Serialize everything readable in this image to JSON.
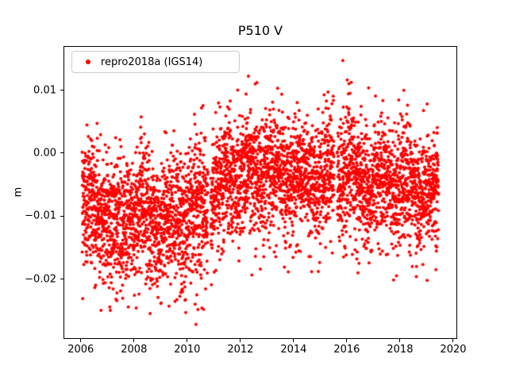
{
  "chart_data": {
    "type": "scatter",
    "title": "P510 V",
    "xlabel": "",
    "ylabel": "m",
    "xlim": [
      2005.35,
      2020.15
    ],
    "ylim": [
      -0.0295,
      0.017
    ],
    "xticks": [
      2006,
      2008,
      2010,
      2012,
      2014,
      2016,
      2018,
      2020
    ],
    "xtick_labels": [
      "2006",
      "2008",
      "2010",
      "2012",
      "2014",
      "2016",
      "2018",
      "2020"
    ],
    "yticks": [
      0.01,
      0.0,
      -0.01,
      -0.02
    ],
    "ytick_labels": [
      "0.01",
      "0.00",
      "−0.01",
      "−0.02"
    ],
    "grid": false,
    "legend": {
      "position": "upper-left",
      "label": "repro2018a (IGS14)",
      "marker_color": "#ff0000"
    },
    "series": [
      {
        "name": "repro2018a (IGS14)",
        "color": "#ff0000",
        "marker": "dot",
        "marker_px": 4,
        "x_start": 2006.05,
        "x_end": 2019.45,
        "samples_per_year": 350,
        "seasonal_amp": 0.0012,
        "envelope": [
          [
            2006.05,
            -0.01,
            0.0045
          ],
          [
            2006.5,
            -0.0075,
            0.005
          ],
          [
            2007.0,
            -0.0105,
            0.005
          ],
          [
            2007.5,
            -0.011,
            0.0055
          ],
          [
            2008.0,
            -0.01,
            0.0045
          ],
          [
            2008.5,
            -0.0105,
            0.005
          ],
          [
            2009.0,
            -0.011,
            0.005
          ],
          [
            2009.5,
            -0.0105,
            0.005
          ],
          [
            2010.0,
            -0.01,
            0.005
          ],
          [
            2010.5,
            -0.0085,
            0.0055
          ],
          [
            2011.0,
            -0.006,
            0.005
          ],
          [
            2011.5,
            -0.004,
            0.0045
          ],
          [
            2012.0,
            -0.0035,
            0.0045
          ],
          [
            2012.5,
            -0.003,
            0.0048
          ],
          [
            2013.0,
            -0.0028,
            0.0045
          ],
          [
            2013.5,
            -0.003,
            0.0045
          ],
          [
            2014.0,
            -0.0035,
            0.0045
          ],
          [
            2014.5,
            -0.0038,
            0.0045
          ],
          [
            2015.0,
            -0.004,
            0.0045
          ],
          [
            2015.5,
            -0.0035,
            0.0048
          ],
          [
            2016.0,
            -0.003,
            0.005
          ],
          [
            2016.5,
            -0.004,
            0.0048
          ],
          [
            2017.0,
            -0.0045,
            0.0045
          ],
          [
            2017.5,
            -0.0045,
            0.0045
          ],
          [
            2018.0,
            -0.0048,
            0.0045
          ],
          [
            2018.5,
            -0.005,
            0.0042
          ],
          [
            2019.0,
            -0.006,
            0.0042
          ],
          [
            2019.45,
            -0.007,
            0.004
          ]
        ],
        "gaps": [
          [
            2010.78,
            2010.88
          ],
          [
            2015.52,
            2015.64
          ]
        ],
        "extreme_points": [
          [
            2010.33,
            -0.0272
          ],
          [
            2010.3,
            -0.024
          ],
          [
            2010.36,
            -0.0225
          ],
          [
            2009.02,
            -0.0238
          ],
          [
            2007.32,
            -0.0232
          ],
          [
            2007.36,
            -0.0222
          ],
          [
            2008.6,
            -0.0215
          ],
          [
            2015.85,
            0.0147
          ],
          [
            2012.3,
            0.0122
          ],
          [
            2012.62,
            0.0112
          ],
          [
            2013.4,
            0.0103
          ],
          [
            2016.08,
            0.011
          ],
          [
            2016.12,
            0.0095
          ],
          [
            2011.9,
            0.01
          ],
          [
            2019.02,
            0.0078
          ],
          [
            2018.25,
            0.0062
          ],
          [
            2015.88,
            -0.0165
          ],
          [
            2016.42,
            -0.019
          ],
          [
            2016.46,
            -0.0175
          ],
          [
            2018.62,
            -0.018
          ],
          [
            2019.35,
            -0.0185
          ],
          [
            2014.2,
            -0.0155
          ],
          [
            2013.1,
            -0.015
          ]
        ]
      }
    ]
  }
}
